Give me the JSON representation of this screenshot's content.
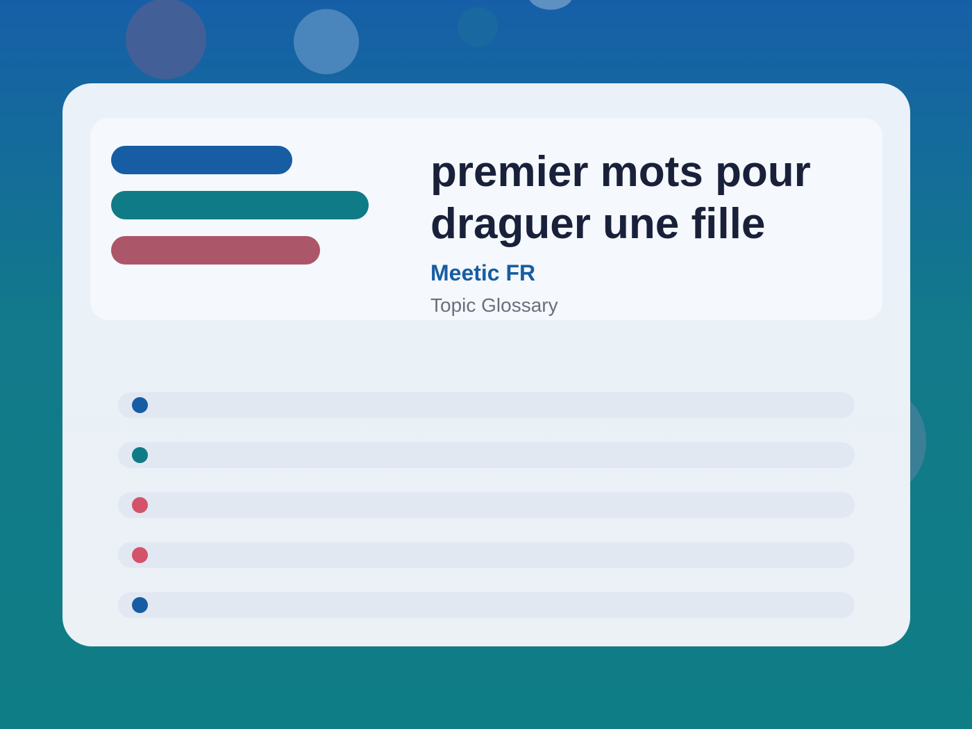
{
  "colors": {
    "blue": "#175da4",
    "teal": "#0f7b86",
    "rose": "#ac566a",
    "red": "#d3536a"
  },
  "header": {
    "title": "premier mots pour draguer une fille",
    "brand": "Meetic FR",
    "subtitle": "Topic Glossary"
  },
  "list": {
    "bullet_colors": [
      "#175da4",
      "#0f7b86",
      "#d3536a",
      "#d3536a",
      "#175da4"
    ]
  }
}
